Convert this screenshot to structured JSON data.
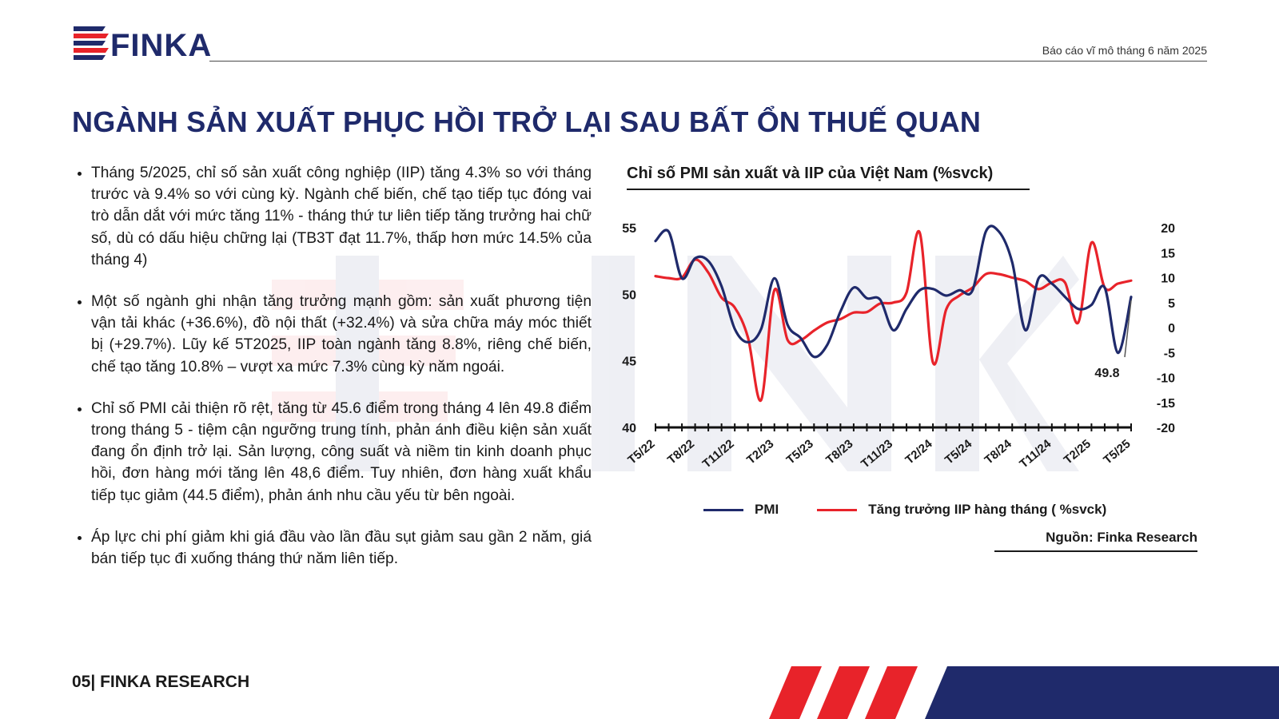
{
  "brand": {
    "name": "FINKA",
    "colors": {
      "navy": "#1f2a6b",
      "red": "#e8232a"
    }
  },
  "header": {
    "report_title": "Báo cáo vĩ mô tháng 6 năm 2025"
  },
  "page": {
    "heading": "NGÀNH SẢN XUẤT PHỤC HỒI TRỞ LẠI SAU BẤT ỔN THUẾ QUAN",
    "bullets": [
      "Tháng 5/2025, chỉ số sản xuất công nghiệp (IIP) tăng 4.3% so với tháng trước và 9.4% so với cùng kỳ. Ngành chế biến, chế tạo tiếp tục đóng vai trò dẫn dắt với mức tăng 11% - tháng thứ tư liên tiếp tăng trưởng hai chữ số, dù có dấu hiệu chững lại (TB3T đạt 11.7%, thấp hơn mức 14.5% của tháng 4)",
      "Một số ngành ghi nhận tăng trưởng mạnh gồm: sản xuất phương tiện vận tải khác (+36.6%), đồ nội thất (+32.4%) và sửa chữa máy móc thiết bị (+29.7%). Lũy kế 5T2025, IIP toàn ngành tăng 8.8%, riêng chế biến, chế tạo tăng 10.8% – vượt xa mức 7.3% cùng kỳ năm ngoái.",
      "Chỉ số PMI cải thiện rõ rệt, tăng từ 45.6 điểm trong tháng 4 lên 49.8 điểm trong tháng 5 - tiệm cận ngưỡng trung tính, phản ánh điều kiện sản xuất đang ổn định trở lại. Sản lượng, công suất và niềm tin kinh doanh phục hồi, đơn hàng mới tăng lên 48,6 điểm. Tuy nhiên, đơn hàng xuất khẩu tiếp tục giảm (44.5 điểm), phản ánh nhu cầu yếu từ bên ngoài.",
      "Áp lực chi phí giảm khi giá đầu vào lần đầu sụt giảm sau gần 2 năm, giá bán tiếp tục đi xuống tháng thứ năm liên tiếp."
    ]
  },
  "chart": {
    "title": "Chỉ số PMI sản xuất và IIP của Việt Nam (%svck)",
    "source": "Nguồn: Finka Research"
  },
  "chart_data": {
    "type": "line",
    "title": "Chỉ số PMI sản xuất và IIP của Việt Nam (%svck)",
    "x": [
      "T5/22",
      "T6/22",
      "T7/22",
      "T8/22",
      "T9/22",
      "T10/22",
      "T11/22",
      "T12/22",
      "T1/23",
      "T2/23",
      "T3/23",
      "T4/23",
      "T5/23",
      "T6/23",
      "T7/23",
      "T8/23",
      "T9/23",
      "T10/23",
      "T11/23",
      "T12/23",
      "T1/24",
      "T2/24",
      "T3/24",
      "T4/24",
      "T5/24",
      "T6/24",
      "T7/24",
      "T8/24",
      "T9/24",
      "T10/24",
      "T11/24",
      "T12/24",
      "T1/25",
      "T2/25",
      "T3/25",
      "T4/25",
      "T5/25"
    ],
    "x_tick_labels": [
      "T5/22",
      "T8/22",
      "T11/22",
      "T2/23",
      "T5/23",
      "T8/23",
      "T11/23",
      "T2/24",
      "T5/24",
      "T8/24",
      "T11/24",
      "T2/25",
      "T5/25"
    ],
    "y_left": {
      "ticks": [
        40,
        45,
        50,
        55
      ],
      "ylim": [
        40,
        55
      ]
    },
    "y_right": {
      "ticks": [
        -20,
        -15,
        -10,
        -5,
        0,
        5,
        10,
        15,
        20
      ],
      "ylim": [
        -20,
        20
      ]
    },
    "series": [
      {
        "name": "PMI",
        "axis": "left",
        "color": "#1f2a6b",
        "values": [
          54.0,
          54.7,
          51.2,
          52.7,
          52.5,
          50.6,
          47.4,
          46.4,
          47.4,
          51.2,
          47.7,
          46.7,
          45.3,
          46.2,
          48.7,
          50.5,
          49.7,
          49.6,
          47.3,
          48.9,
          50.3,
          50.4,
          49.9,
          50.3,
          50.3,
          54.7,
          54.7,
          52.4,
          47.3,
          51.2,
          50.8,
          49.8,
          48.9,
          49.2,
          50.5,
          45.6,
          49.8
        ]
      },
      {
        "name": "Tăng trưởng IIP hàng tháng ( %svck)",
        "axis": "right",
        "color": "#e8232a",
        "values": [
          10.3,
          9.9,
          10.0,
          13.6,
          11.0,
          6.0,
          4.0,
          -2.0,
          -14.5,
          7.5,
          -2.5,
          -2.5,
          -0.6,
          1.0,
          1.7,
          3.0,
          3.1,
          4.8,
          5.0,
          7.0,
          19.0,
          -7.0,
          3.6,
          6.4,
          8.0,
          10.7,
          10.7,
          10.0,
          9.3,
          7.7,
          9.0,
          9.0,
          1.0,
          17.0,
          8.0,
          8.8,
          9.4
        ]
      }
    ],
    "annotations": [
      {
        "text": "49.8"
      }
    ],
    "legend": "bottom"
  },
  "footer": {
    "label": "05| FINKA RESEARCH"
  }
}
